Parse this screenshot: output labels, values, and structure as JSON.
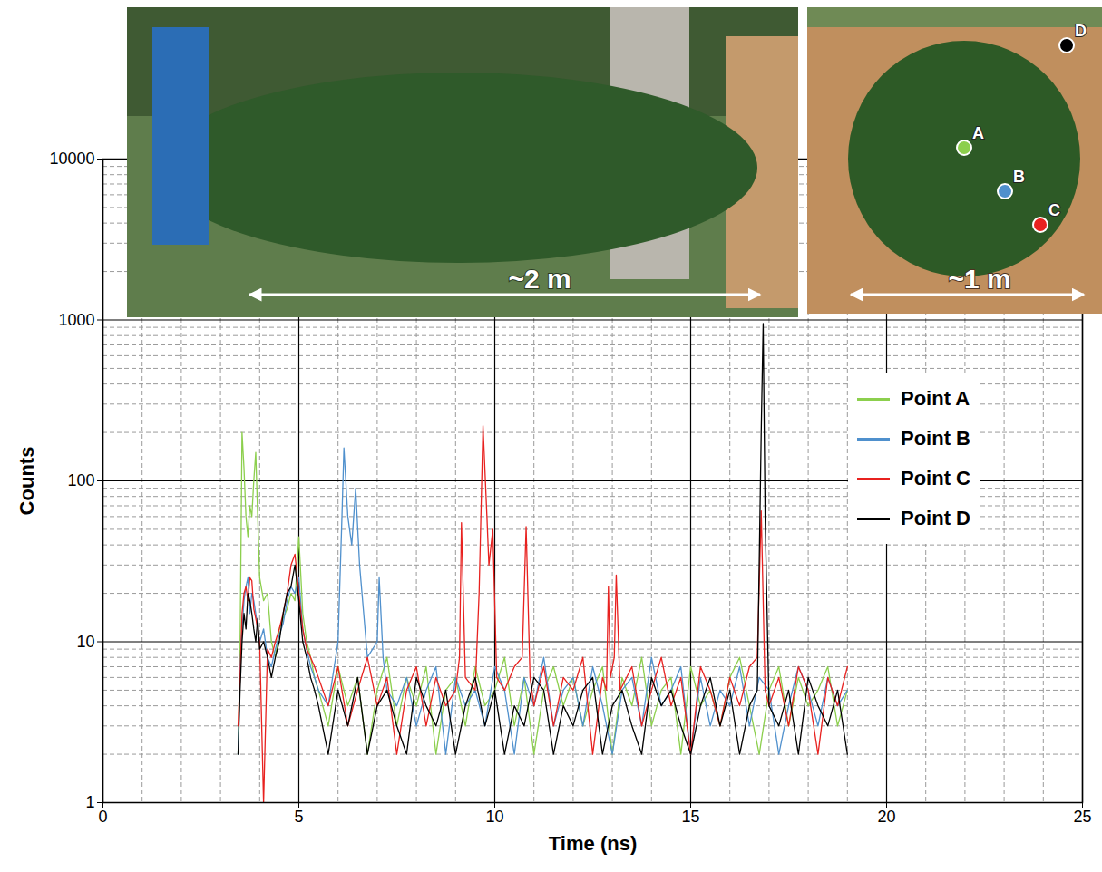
{
  "chart_data": {
    "type": "line",
    "xlabel": "Time (ns)",
    "ylabel": "Counts",
    "xlim": [
      0,
      25
    ],
    "xticks": [
      0,
      5,
      10,
      15,
      20,
      25
    ],
    "ylim": [
      1,
      10000
    ],
    "yticks": [
      1,
      10,
      100,
      1000,
      10000
    ],
    "log": "y",
    "grid": true,
    "legend": "top-right",
    "annotations": [
      "~2 m",
      "~1 m",
      "A",
      "B",
      "C",
      "D"
    ],
    "series": [
      {
        "name": "Point A",
        "color": "#8ccf4d",
        "x": [
          3.45,
          3.5,
          3.55,
          3.6,
          3.65,
          3.7,
          3.75,
          3.8,
          3.85,
          3.9,
          3.95,
          4.0,
          4.1,
          4.2,
          4.3,
          4.4,
          4.5,
          4.6,
          4.7,
          4.8,
          4.9,
          5.0,
          5.1,
          5.2,
          5.3,
          5.4,
          5.5,
          5.75,
          6,
          6.25,
          6.5,
          6.75,
          7,
          7.25,
          7.5,
          7.75,
          8,
          8.25,
          8.5,
          8.75,
          9,
          9.25,
          9.5,
          9.75,
          10,
          10.25,
          10.5,
          10.75,
          11,
          11.25,
          11.5,
          11.75,
          12,
          12.25,
          12.5,
          12.75,
          13,
          13.25,
          13.5,
          13.75,
          14,
          14.25,
          14.5,
          14.75,
          15,
          15.25,
          15.5,
          15.75,
          16,
          16.25,
          16.5,
          16.75,
          17,
          17.25,
          17.5,
          17.75,
          18,
          18.25,
          18.5,
          18.75,
          19
        ],
        "values": [
          2,
          9,
          200,
          120,
          60,
          45,
          70,
          60,
          100,
          150,
          60,
          25,
          18,
          20,
          10,
          8,
          12,
          14,
          16,
          20,
          18,
          45,
          15,
          10,
          8,
          6,
          5,
          3,
          7,
          4,
          6,
          2,
          5,
          8,
          3,
          6,
          4,
          7,
          2,
          5,
          6,
          3,
          7,
          4,
          5,
          8,
          3,
          6,
          2,
          5,
          7,
          4,
          6,
          3,
          5,
          7,
          2,
          6,
          4,
          8,
          3,
          5,
          6,
          2,
          7,
          4,
          5,
          3,
          6,
          8,
          4,
          2,
          5,
          7,
          3,
          6,
          4,
          5,
          7,
          3,
          5
        ]
      },
      {
        "name": "Point B",
        "color": "#4f90cd",
        "x": [
          3.45,
          3.5,
          3.55,
          3.6,
          3.65,
          3.7,
          3.75,
          3.8,
          3.85,
          3.9,
          3.95,
          4.0,
          4.1,
          4.2,
          4.3,
          4.4,
          4.5,
          4.6,
          4.7,
          4.8,
          4.9,
          5.0,
          5.1,
          5.2,
          5.3,
          5.4,
          5.5,
          5.75,
          6,
          6.1,
          6.15,
          6.25,
          6.35,
          6.45,
          6.55,
          6.75,
          7,
          7.05,
          7.15,
          7.25,
          7.5,
          7.75,
          8,
          8.25,
          8.5,
          8.75,
          9,
          9.25,
          9.5,
          9.75,
          10,
          10.25,
          10.5,
          10.75,
          11,
          11.25,
          11.5,
          11.75,
          12,
          12.25,
          12.5,
          12.75,
          13,
          13.25,
          13.5,
          13.75,
          14,
          14.25,
          14.5,
          14.75,
          15,
          15.25,
          15.5,
          15.75,
          16,
          16.25,
          16.5,
          16.75,
          17,
          17.25,
          17.5,
          17.75,
          18,
          18.25,
          18.5,
          18.75,
          19
        ],
        "values": [
          2,
          7,
          12,
          18,
          22,
          25,
          15,
          20,
          18,
          15,
          12,
          10,
          12,
          8,
          7,
          9,
          11,
          13,
          18,
          22,
          20,
          25,
          12,
          9,
          7,
          6,
          5,
          4,
          10,
          60,
          160,
          60,
          40,
          90,
          30,
          8,
          10,
          25,
          8,
          5,
          4,
          6,
          3,
          5,
          7,
          2,
          6,
          4,
          5,
          3,
          7,
          5,
          2,
          6,
          4,
          8,
          3,
          5,
          6,
          3,
          7,
          4,
          2,
          5,
          6,
          3,
          8,
          4,
          5,
          7,
          2,
          6,
          3,
          5,
          4,
          7,
          3,
          6,
          5,
          2,
          4,
          7,
          5,
          3,
          6,
          4,
          5
        ]
      },
      {
        "name": "Point C",
        "color": "#e8211f",
        "x": [
          3.45,
          3.5,
          3.55,
          3.6,
          3.65,
          3.7,
          3.75,
          3.8,
          3.85,
          3.9,
          3.95,
          4.0,
          4.1,
          4.2,
          4.3,
          4.4,
          4.5,
          4.6,
          4.7,
          4.8,
          4.9,
          5.0,
          5.1,
          5.2,
          5.3,
          5.4,
          5.5,
          5.75,
          6,
          6.25,
          6.5,
          6.75,
          7,
          7.25,
          7.5,
          7.75,
          8,
          8.25,
          8.5,
          8.75,
          9,
          9.1,
          9.15,
          9.25,
          9.5,
          9.6,
          9.7,
          9.8,
          9.85,
          9.95,
          10.05,
          10.25,
          10.5,
          10.7,
          10.8,
          10.9,
          11,
          11.25,
          11.5,
          11.75,
          12,
          12.25,
          12.5,
          12.75,
          12.85,
          12.9,
          12.95,
          13.05,
          13.1,
          13.2,
          13.5,
          13.75,
          14,
          14.25,
          14.5,
          14.75,
          15,
          15.25,
          15.5,
          15.75,
          16,
          16.25,
          16.5,
          16.7,
          16.8,
          16.9,
          17,
          17.25,
          17.5,
          17.75,
          18,
          18.25,
          18.5,
          18.75,
          19
        ],
        "values": [
          3,
          6,
          15,
          20,
          22,
          18,
          25,
          24,
          16,
          14,
          12,
          10,
          1,
          9,
          8,
          10,
          12,
          15,
          20,
          30,
          35,
          20,
          12,
          9,
          8,
          7,
          6,
          4,
          7,
          3,
          5,
          8,
          4,
          6,
          2,
          5,
          7,
          3,
          6,
          4,
          5,
          8,
          55,
          6,
          5,
          20,
          220,
          60,
          30,
          50,
          6,
          5,
          7,
          8,
          52,
          6,
          4,
          7,
          3,
          6,
          5,
          8,
          2,
          6,
          5,
          22,
          6,
          8,
          26,
          5,
          7,
          3,
          5,
          8,
          4,
          6,
          2,
          7,
          5,
          3,
          6,
          4,
          7,
          8,
          65,
          5,
          4,
          6,
          3,
          7,
          5,
          2,
          6,
          4,
          7
        ]
      },
      {
        "name": "Point D",
        "color": "#000000",
        "x": [
          3.45,
          3.5,
          3.55,
          3.6,
          3.65,
          3.7,
          3.75,
          3.8,
          3.85,
          3.9,
          3.95,
          4.0,
          4.1,
          4.2,
          4.3,
          4.4,
          4.5,
          4.6,
          4.7,
          4.8,
          4.9,
          5.0,
          5.1,
          5.2,
          5.3,
          5.4,
          5.5,
          5.75,
          6,
          6.25,
          6.5,
          6.75,
          7,
          7.25,
          7.5,
          7.75,
          8,
          8.25,
          8.5,
          8.75,
          9,
          9.25,
          9.5,
          9.75,
          10,
          10.25,
          10.5,
          10.75,
          11,
          11.25,
          11.5,
          11.75,
          12,
          12.25,
          12.5,
          12.75,
          13,
          13.25,
          13.5,
          13.75,
          14,
          14.25,
          14.5,
          14.75,
          15,
          15.25,
          15.5,
          15.75,
          16,
          16.25,
          16.5,
          16.7,
          16.8,
          16.85,
          16.9,
          17,
          17.25,
          17.5,
          17.75,
          18,
          18.25,
          18.5,
          18.75,
          19
        ],
        "values": [
          2,
          5,
          10,
          15,
          12,
          20,
          18,
          15,
          12,
          10,
          14,
          9,
          10,
          8,
          6,
          8,
          10,
          15,
          20,
          22,
          30,
          18,
          10,
          8,
          6,
          5,
          4,
          2,
          5,
          3,
          6,
          2,
          4,
          5,
          3,
          2,
          6,
          4,
          3,
          5,
          2,
          4,
          6,
          3,
          5,
          2,
          4,
          3,
          6,
          5,
          2,
          4,
          3,
          5,
          6,
          2,
          4,
          5,
          3,
          2,
          6,
          4,
          5,
          3,
          2,
          4,
          6,
          3,
          5,
          2,
          4,
          5,
          200,
          950,
          60,
          4,
          3,
          5,
          2,
          6,
          4,
          3,
          5,
          2
        ]
      }
    ]
  }
}
